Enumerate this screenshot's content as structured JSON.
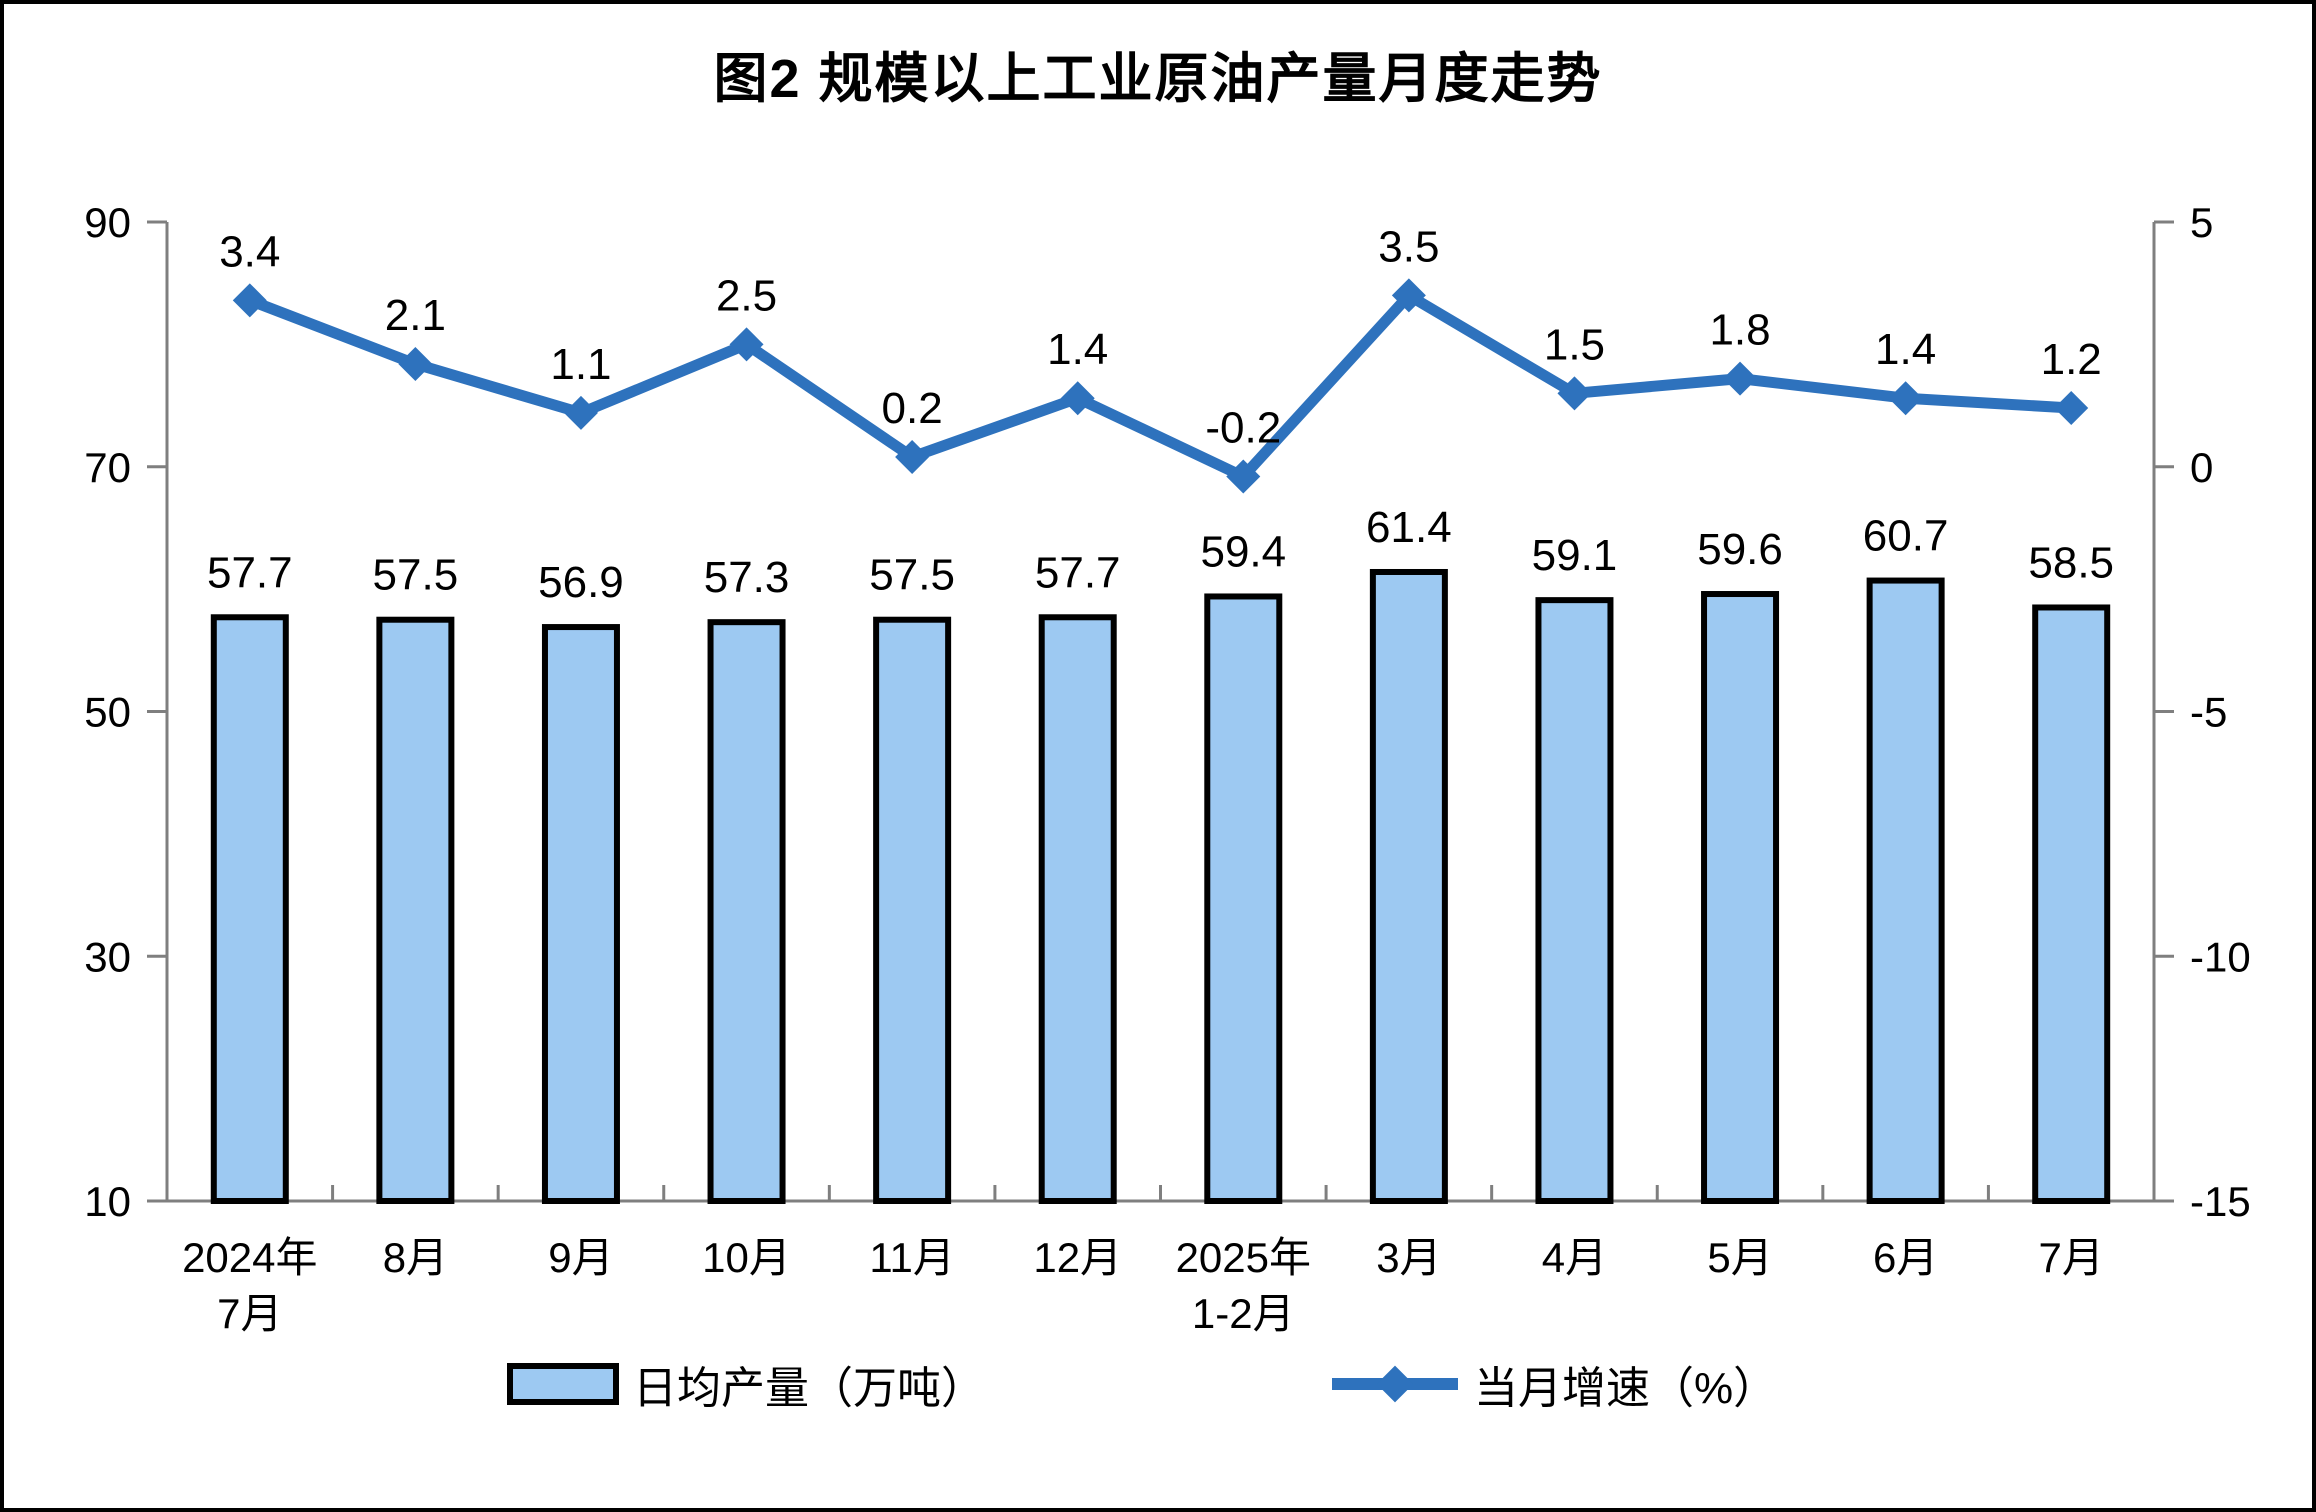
{
  "title": "图2 规模以上工业原油产量月度走势",
  "chart_data": {
    "type": "combo-bar-line",
    "title": "图2 规模以上工业原油产量月度走势",
    "categories": [
      "2024年\n7月",
      "8月",
      "9月",
      "10月",
      "11月",
      "12月",
      "2025年\n1-2月",
      "3月",
      "4月",
      "5月",
      "6月",
      "7月"
    ],
    "series": [
      {
        "name": "日均产量（万吨）",
        "type": "bar",
        "axis": "left",
        "values": [
          57.7,
          57.5,
          56.9,
          57.3,
          57.5,
          57.7,
          59.4,
          61.4,
          59.1,
          59.6,
          60.7,
          58.5
        ],
        "color": "#9DC9F2",
        "border_color": "#000000"
      },
      {
        "name": "当月增速（%）",
        "type": "line",
        "axis": "right",
        "values": [
          3.4,
          2.1,
          1.1,
          2.5,
          0.2,
          1.4,
          -0.2,
          3.5,
          1.5,
          1.8,
          1.4,
          1.2
        ],
        "color": "#2E72BD",
        "marker": "diamond"
      }
    ],
    "left_axis": {
      "min": 10,
      "max": 90,
      "ticks": [
        90,
        70,
        50,
        30,
        10
      ]
    },
    "right_axis": {
      "min": -15,
      "max": 5,
      "ticks": [
        5,
        0,
        -5,
        -10,
        -15
      ]
    },
    "axis_color": "#7F7F7F",
    "grid": false,
    "legend_position": "bottom",
    "data_labels": true
  }
}
